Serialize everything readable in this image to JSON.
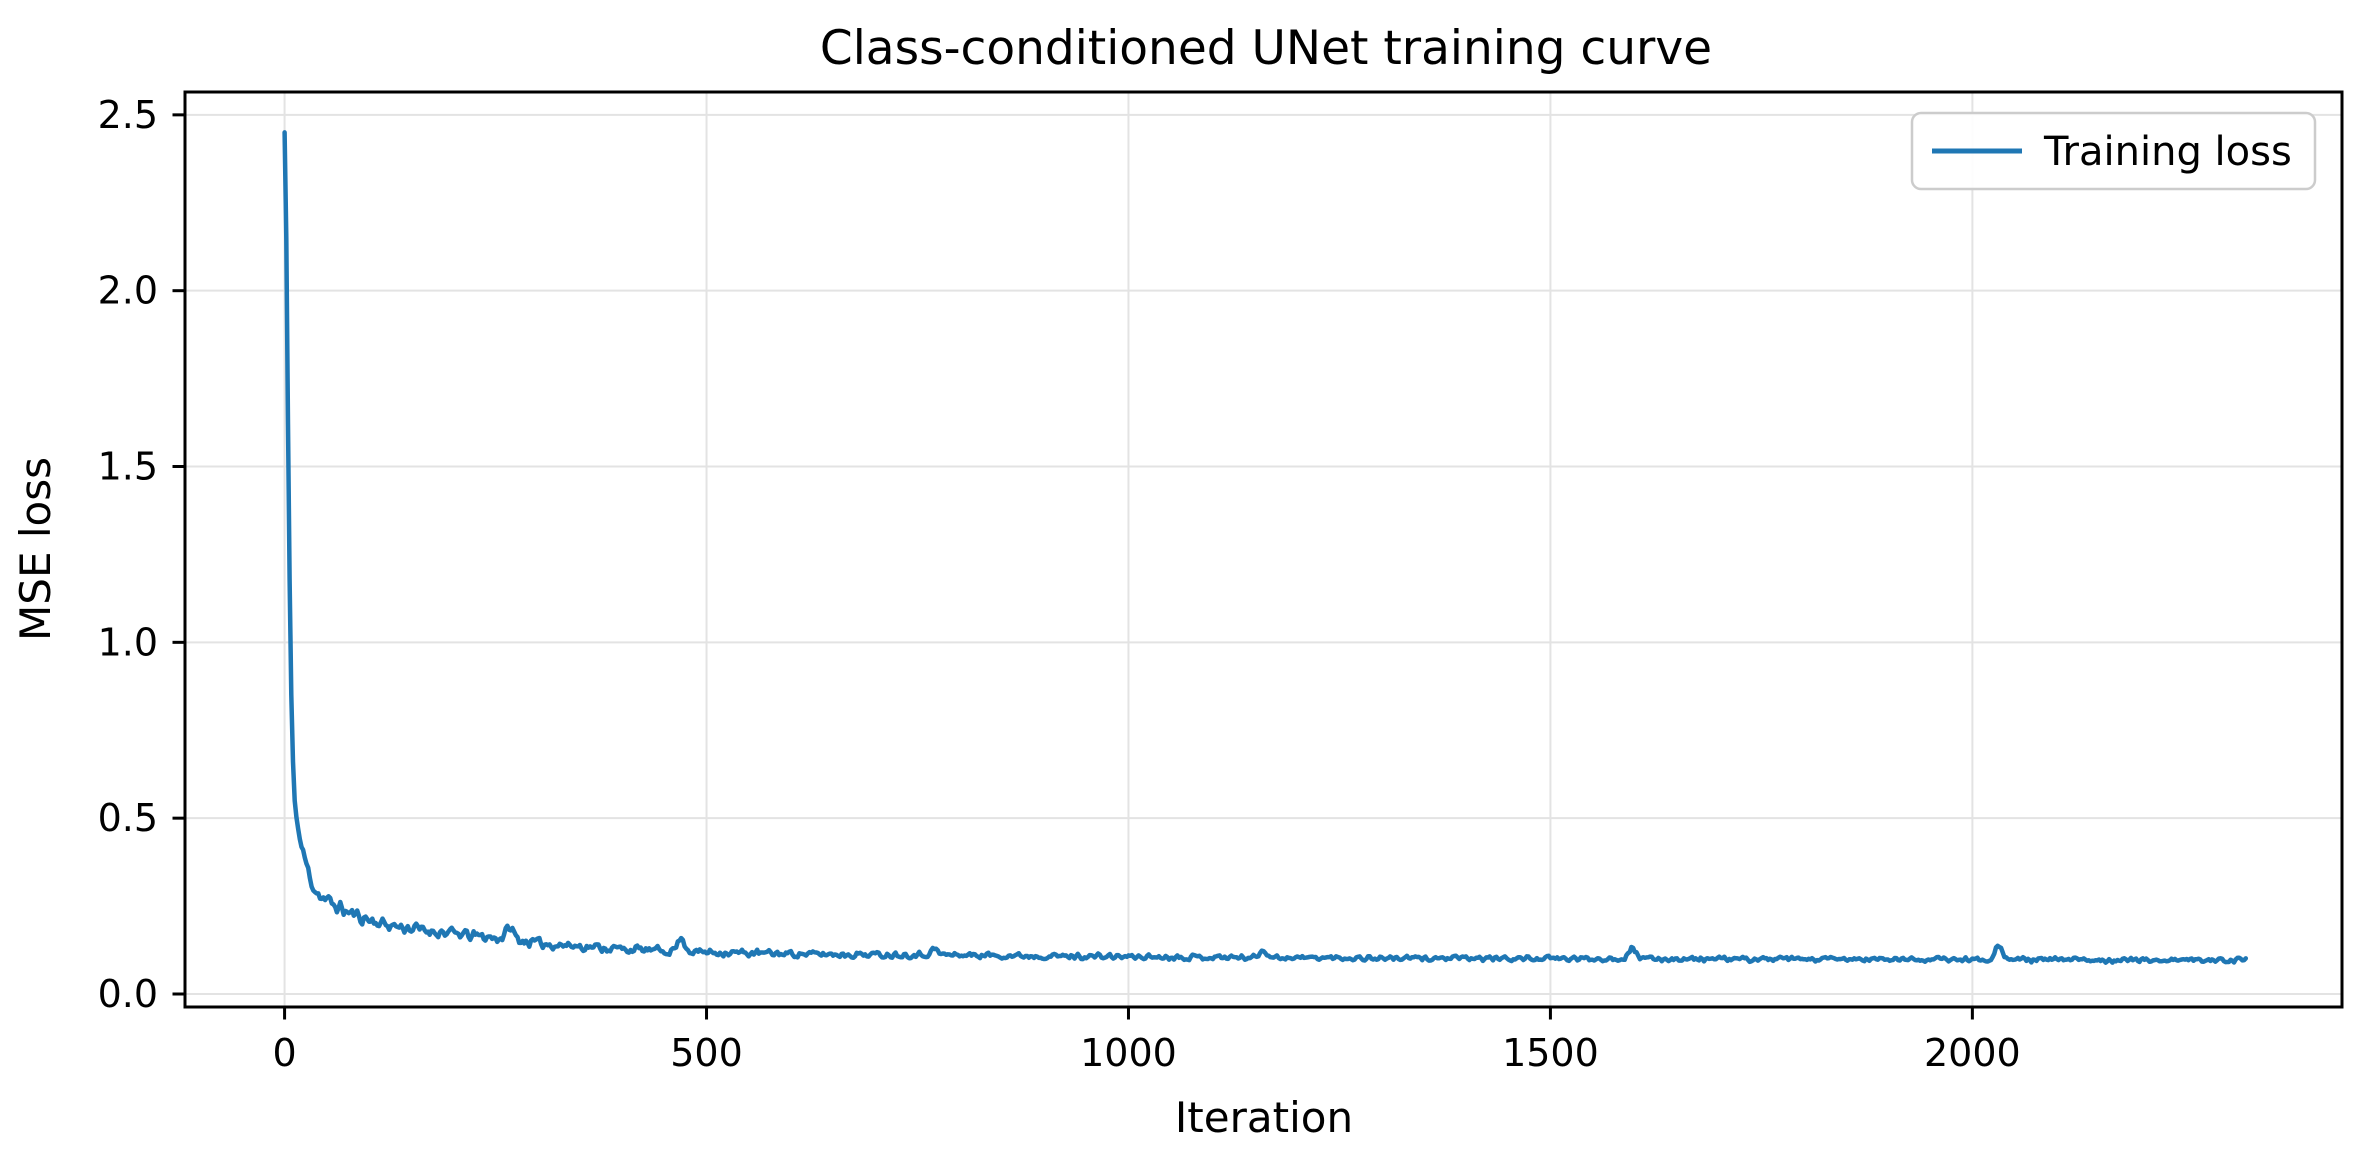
{
  "figure": {
    "title": "Class-conditioned UNet training curve",
    "background_color": "#ffffff",
    "text_color": "#000000",
    "grid_color": "#e3e3e3"
  },
  "legend": {
    "position": "upper right",
    "entries": [
      {
        "label": "Training loss",
        "color": "#1f77b4"
      }
    ]
  },
  "chart_data": {
    "type": "line",
    "title": "Class-conditioned UNet training curve",
    "xlabel": "Iteration",
    "ylabel": "MSE loss",
    "xlim": [
      -118,
      2438
    ],
    "ylim": [
      -0.037,
      2.565
    ],
    "grid": true,
    "legend_position": "upper right",
    "x_ticks": [
      0,
      500,
      1000,
      1500,
      2000
    ],
    "x_tick_labels": [
      "0",
      "500",
      "1000",
      "1500",
      "2000"
    ],
    "y_ticks": [
      0.0,
      0.5,
      1.0,
      1.5,
      2.0,
      2.5
    ],
    "y_tick_labels": [
      "0.0",
      "0.5",
      "1.0",
      "1.5",
      "2.0",
      "2.5"
    ],
    "series": [
      {
        "name": "Training loss",
        "color": "#1f77b4",
        "x_min": 0,
        "x_max": 2325,
        "sample_step": 2,
        "peak_loss": 2.45,
        "final_loss": 0.1,
        "trend_points": [
          [
            0,
            2.45
          ],
          [
            2,
            2.15
          ],
          [
            4,
            1.62
          ],
          [
            6,
            1.18
          ],
          [
            8,
            0.85
          ],
          [
            10,
            0.66
          ],
          [
            12,
            0.55
          ],
          [
            15,
            0.48
          ],
          [
            18,
            0.44
          ],
          [
            22,
            0.4
          ],
          [
            28,
            0.35
          ],
          [
            35,
            0.3
          ],
          [
            45,
            0.272
          ],
          [
            60,
            0.252
          ],
          [
            75,
            0.232
          ],
          [
            95,
            0.215
          ],
          [
            115,
            0.2
          ],
          [
            140,
            0.19
          ],
          [
            170,
            0.18
          ],
          [
            200,
            0.172
          ],
          [
            235,
            0.163
          ],
          [
            270,
            0.155
          ],
          [
            310,
            0.142
          ],
          [
            350,
            0.136
          ],
          [
            400,
            0.128
          ],
          [
            450,
            0.123
          ],
          [
            500,
            0.119
          ],
          [
            560,
            0.116
          ],
          [
            640,
            0.113
          ],
          [
            720,
            0.112
          ],
          [
            800,
            0.111
          ],
          [
            900,
            0.108
          ],
          [
            1000,
            0.106
          ],
          [
            1150,
            0.104
          ],
          [
            1300,
            0.102
          ],
          [
            1450,
            0.101
          ],
          [
            1600,
            0.1
          ],
          [
            1750,
            0.099
          ],
          [
            1900,
            0.0985
          ],
          [
            2050,
            0.098
          ],
          [
            2200,
            0.0965
          ],
          [
            2325,
            0.097
          ]
        ],
        "noise": {
          "base": 0.008,
          "extra": 0.018,
          "decay": 380,
          "seed": 11,
          "clean_until": 14
        },
        "spikes": [
          [
            267,
            0.19
          ],
          [
            470,
            0.158
          ],
          [
            770,
            0.127
          ],
          [
            1160,
            0.125
          ],
          [
            1597,
            0.133
          ],
          [
            2031,
            0.14
          ]
        ]
      }
    ]
  }
}
